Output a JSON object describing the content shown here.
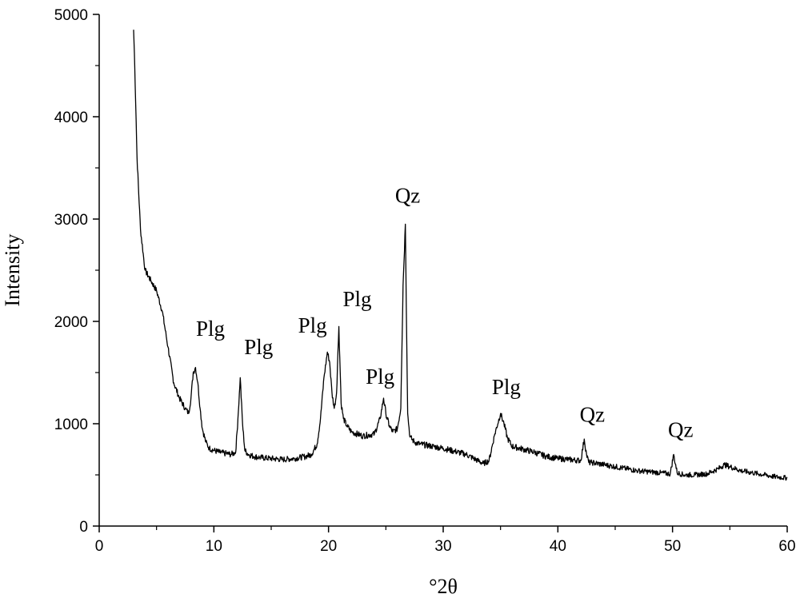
{
  "chart_data": {
    "type": "line",
    "title": "",
    "xlabel": "°2θ",
    "ylabel": "Intensity",
    "xlim": [
      0,
      60
    ],
    "ylim": [
      0,
      5000
    ],
    "xticks": [
      0,
      10,
      20,
      30,
      40,
      50,
      60
    ],
    "yticks": [
      0,
      1000,
      2000,
      3000,
      4000,
      5000
    ],
    "grid": false,
    "legend": "none",
    "line_color": "#000000",
    "series": [
      {
        "x": [
          3.0,
          3.1,
          3.3,
          3.6,
          4.0,
          4.5,
          5.0,
          5.5,
          6.0,
          6.5,
          7.0,
          7.5,
          7.8,
          8.0,
          8.2,
          8.4,
          8.6,
          8.8,
          9.0,
          9.3,
          9.6,
          10.0,
          10.5,
          11.0,
          11.5,
          11.9,
          12.1,
          12.3,
          12.5,
          12.7,
          13.0,
          13.5,
          14.0,
          15.0,
          16.0,
          17.0,
          18.0,
          18.5,
          19.0,
          19.3,
          19.6,
          19.9,
          20.1,
          20.3,
          20.5,
          20.7,
          20.9,
          21.1,
          21.3,
          21.6,
          22.0,
          23.0,
          24.0,
          24.5,
          24.8,
          25.0,
          25.3,
          25.6,
          26.0,
          26.3,
          26.5,
          26.7,
          26.9,
          27.1,
          27.5,
          28.0,
          29.0,
          30.0,
          31.0,
          32.0,
          33.0,
          33.5,
          34.0,
          34.5,
          35.0,
          35.3,
          35.6,
          36.0,
          37.0,
          38.0,
          39.0,
          40.0,
          41.0,
          42.0,
          42.3,
          42.5,
          42.7,
          43.0,
          44.0,
          45.0,
          46.0,
          47.0,
          48.0,
          49.0,
          49.8,
          50.1,
          50.4,
          51.0,
          52.0,
          53.0,
          54.0,
          54.5,
          55.0,
          55.5,
          56.0,
          57.0,
          58.0,
          59.0,
          60.0
        ],
        "y": [
          4850,
          4500,
          3600,
          2900,
          2500,
          2400,
          2300,
          2100,
          1750,
          1400,
          1250,
          1150,
          1100,
          1250,
          1500,
          1550,
          1400,
          1150,
          950,
          820,
          760,
          740,
          720,
          710,
          700,
          720,
          1050,
          1450,
          1000,
          740,
          700,
          680,
          670,
          660,
          650,
          660,
          680,
          700,
          800,
          1050,
          1450,
          1700,
          1600,
          1300,
          1150,
          1300,
          1950,
          1200,
          1050,
          980,
          920,
          880,
          900,
          1050,
          1250,
          1100,
          980,
          920,
          950,
          1150,
          2350,
          2950,
          1100,
          870,
          820,
          800,
          780,
          760,
          730,
          700,
          640,
          610,
          640,
          900,
          1100,
          1000,
          860,
          780,
          750,
          720,
          680,
          660,
          650,
          640,
          850,
          700,
          620,
          620,
          600,
          580,
          560,
          540,
          530,
          520,
          510,
          700,
          520,
          500,
          500,
          510,
          560,
          600,
          580,
          560,
          540,
          520,
          500,
          480,
          470
        ]
      }
    ],
    "annotations": [
      {
        "text": "Plg",
        "x": 9.7,
        "y": 1860
      },
      {
        "text": "Plg",
        "x": 13.9,
        "y": 1680
      },
      {
        "text": "Plg",
        "x": 18.6,
        "y": 1890
      },
      {
        "text": "Plg",
        "x": 22.5,
        "y": 2150
      },
      {
        "text": "Plg",
        "x": 24.5,
        "y": 1390
      },
      {
        "text": "Qz",
        "x": 26.9,
        "y": 3160
      },
      {
        "text": "Plg",
        "x": 35.5,
        "y": 1290
      },
      {
        "text": "Qz",
        "x": 43.0,
        "y": 1020
      },
      {
        "text": "Qz",
        "x": 50.7,
        "y": 870
      }
    ]
  }
}
